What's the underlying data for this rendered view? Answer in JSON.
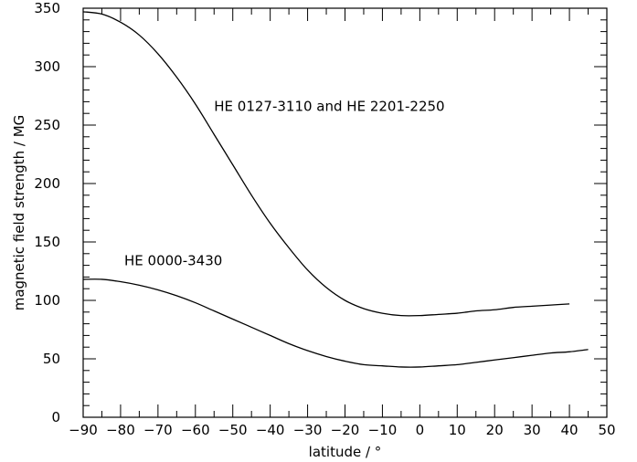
{
  "chart_data": {
    "type": "line",
    "title": "",
    "xlabel": "latitude / °",
    "ylabel": "magnetic field strength / MG",
    "xlim": [
      -90,
      50
    ],
    "ylim": [
      0,
      350
    ],
    "x_ticks_major": [
      -90,
      -80,
      -70,
      -60,
      -50,
      -40,
      -30,
      -20,
      -10,
      0,
      10,
      20,
      30,
      40,
      50
    ],
    "y_ticks_major": [
      0,
      50,
      100,
      150,
      200,
      250,
      300,
      350
    ],
    "x_ticks_minor_step": 5,
    "y_ticks_minor_step": 10,
    "grid": false,
    "series": [
      {
        "x": [
          -90,
          -85,
          -80,
          -75,
          -70,
          -65,
          -60,
          -55,
          -50,
          -45,
          -40,
          -35,
          -30,
          -25,
          -20,
          -15,
          -10,
          -5,
          0,
          5,
          10,
          15,
          20,
          25,
          30,
          35,
          40
        ],
        "y": [
          347,
          345,
          338,
          327,
          311,
          291,
          268,
          242,
          216,
          190,
          166,
          145,
          126,
          111,
          100,
          93,
          89,
          87,
          87,
          88,
          89,
          91,
          92,
          94,
          95,
          96,
          97
        ]
      },
      {
        "x": [
          -90,
          -85,
          -80,
          -75,
          -70,
          -65,
          -60,
          -55,
          -50,
          -45,
          -40,
          -35,
          -30,
          -25,
          -20,
          -15,
          -10,
          -5,
          0,
          5,
          10,
          15,
          20,
          25,
          30,
          35,
          40,
          45
        ],
        "y": [
          118,
          118,
          116,
          113,
          109,
          104,
          98,
          91,
          84,
          77,
          70,
          63,
          57,
          52,
          48,
          45,
          44,
          43,
          43,
          44,
          45,
          47,
          49,
          51,
          53,
          55,
          56,
          58
        ]
      }
    ],
    "annotations": [
      {
        "text": "HE 0127-3110 and HE 2201-2250",
        "x": -55,
        "y": 262
      },
      {
        "text": "HE 0000-3430",
        "x": -79,
        "y": 130
      }
    ]
  }
}
